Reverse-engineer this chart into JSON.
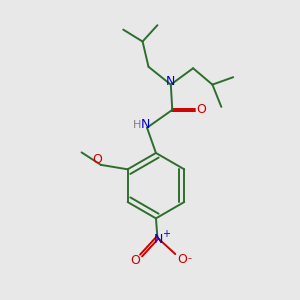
{
  "bg_color": "#e8e8e8",
  "bond_color": "#2d6e2d",
  "N_color": "#0000cc",
  "O_color": "#cc0000",
  "H_color": "#808080",
  "figsize": [
    3.0,
    3.0
  ],
  "dpi": 100,
  "xlim": [
    0,
    10
  ],
  "ylim": [
    0,
    10
  ]
}
